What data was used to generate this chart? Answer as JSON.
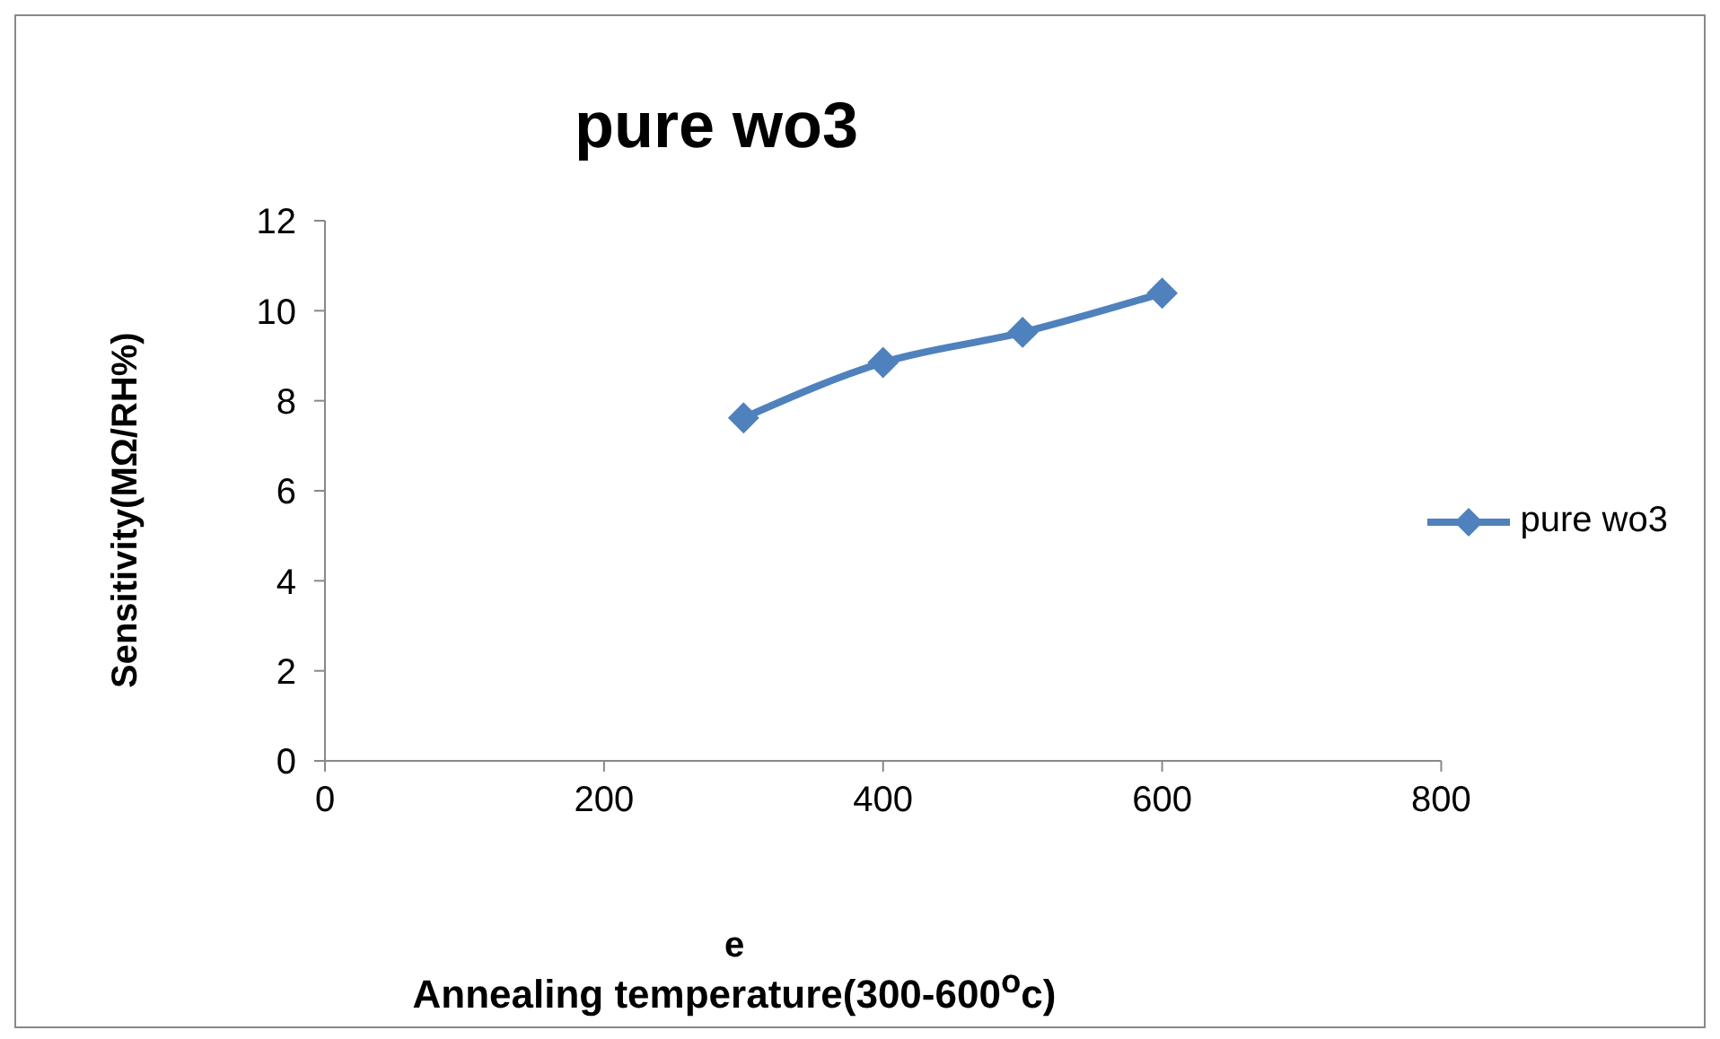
{
  "chart_data": {
    "type": "line",
    "title": "pure wo3",
    "xlabel": "Annealing temperature(300-600$^{o}$c)",
    "ylabel": "Sensitivity(MΩ/RH%)",
    "annotations": [
      "e"
    ],
    "x": [
      300,
      400,
      500,
      600
    ],
    "series": [
      {
        "name": "pure wo3",
        "color": "#4f81bd",
        "values": [
          7.62,
          8.85,
          9.52,
          10.39
        ]
      }
    ],
    "xlim": [
      0,
      800
    ],
    "xticks": [
      0,
      200,
      400,
      600,
      800
    ],
    "ylim": [
      0,
      12
    ],
    "yticks": [
      0,
      2,
      4,
      6,
      8,
      10,
      12
    ],
    "legend": "right",
    "marker": "diamond",
    "line_style": "solid"
  }
}
